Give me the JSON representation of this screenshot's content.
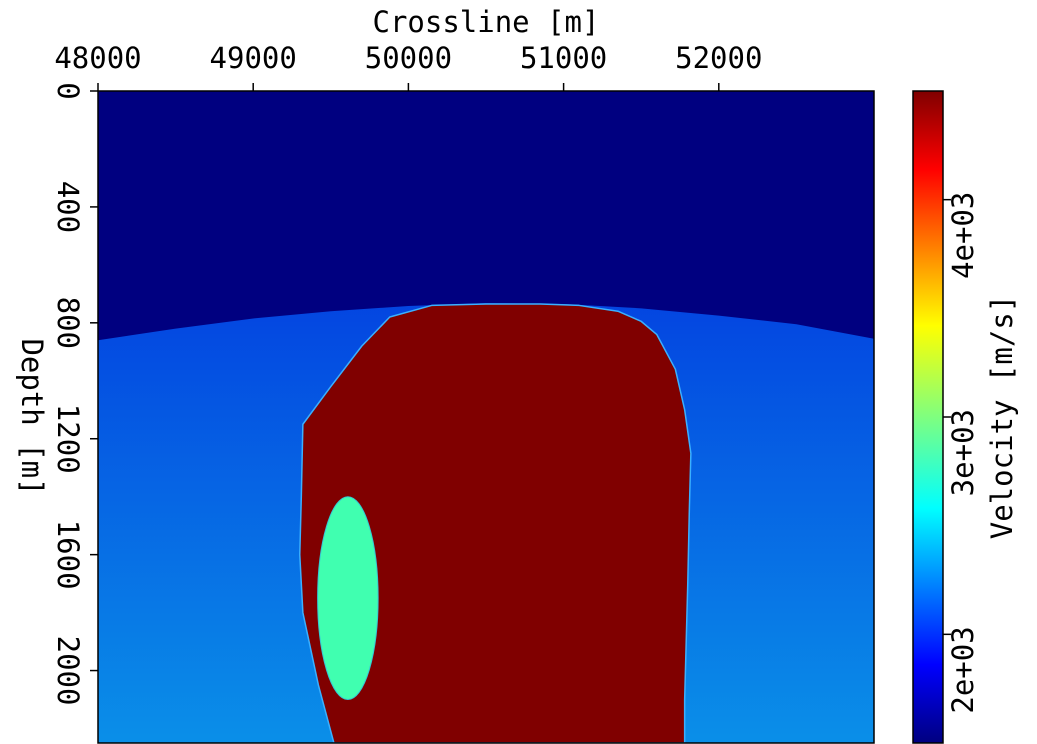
{
  "chart_data": {
    "type": "heatmap",
    "title": "",
    "xlabel": "Crossline [m]",
    "ylabel": "Depth [m]",
    "colorbar_label": "Velocity [m/s]",
    "xlim": [
      48000,
      53000
    ],
    "ylim": [
      0,
      2250
    ],
    "x_ticks": [
      48000,
      49000,
      50000,
      51000,
      52000
    ],
    "x_tick_labels": [
      "48000",
      "49000",
      "50000",
      "51000",
      "52000"
    ],
    "y_ticks": [
      0,
      400,
      800,
      1200,
      1600,
      2000
    ],
    "y_tick_labels": [
      "0",
      "400",
      "800",
      "1200",
      "1600",
      "2000"
    ],
    "colorbar_range": [
      1500,
      4500
    ],
    "colorbar_ticks": [
      2000,
      3000,
      4000
    ],
    "colorbar_tick_labels": [
      "2e+03",
      "3e+03",
      "4e+03"
    ],
    "colormap": "jet",
    "x_axis_position": "top",
    "colorbar_position": "right",
    "grid": false,
    "layers": {
      "water": {
        "velocity": 1500,
        "color": "#000080",
        "bottom_depth": [
          [
            48000,
            860
          ],
          [
            48500,
            820
          ],
          [
            49000,
            785
          ],
          [
            49500,
            760
          ],
          [
            50000,
            742
          ],
          [
            50500,
            732
          ],
          [
            51000,
            735
          ],
          [
            51500,
            750
          ],
          [
            52000,
            775
          ],
          [
            52500,
            805
          ],
          [
            53000,
            855
          ]
        ]
      },
      "sediment": {
        "velocity_top": 1800,
        "velocity_bottom": 2300,
        "color_top": "#0022dd",
        "color_bottom": "#0a8fe8"
      },
      "salt_body": {
        "velocity": 4500,
        "color": "#800000",
        "outline": [
          [
            50850,
            735
          ],
          [
            51100,
            740
          ],
          [
            51350,
            760
          ],
          [
            51500,
            795
          ],
          [
            51600,
            840
          ],
          [
            51720,
            960
          ],
          [
            51780,
            1100
          ],
          [
            51820,
            1250
          ],
          [
            51810,
            1450
          ],
          [
            51800,
            1700
          ],
          [
            51790,
            1900
          ],
          [
            51780,
            2100
          ],
          [
            51780,
            2250
          ],
          [
            49520,
            2250
          ],
          [
            49420,
            2050
          ],
          [
            49320,
            1800
          ],
          [
            49300,
            1600
          ],
          [
            49310,
            1400
          ],
          [
            49320,
            1150
          ],
          [
            49500,
            1020
          ],
          [
            49700,
            880
          ],
          [
            49880,
            780
          ],
          [
            50150,
            740
          ],
          [
            50500,
            735
          ]
        ]
      },
      "inclusion": {
        "velocity": 2850,
        "color": "#40ffb0",
        "center": [
          49610,
          1750
        ],
        "radius_x": 195,
        "radius_y": 350
      }
    }
  }
}
